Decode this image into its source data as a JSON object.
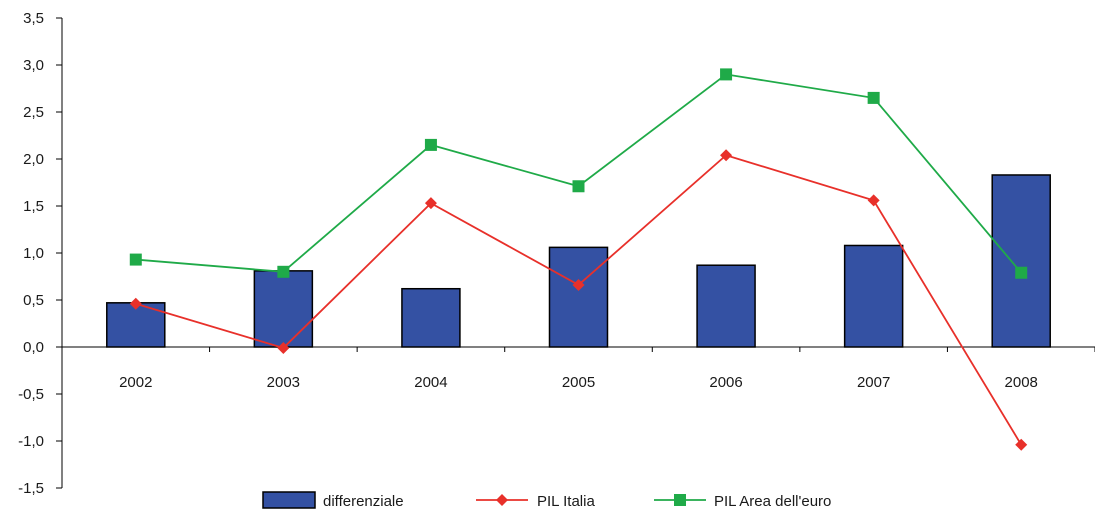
{
  "chart_data": {
    "type": "bar",
    "categories": [
      "2002",
      "2003",
      "2004",
      "2005",
      "2006",
      "2007",
      "2008"
    ],
    "ylim": [
      -1.5,
      3.5
    ],
    "yticks": [
      -1.5,
      -1.0,
      -0.5,
      0.0,
      0.5,
      1.0,
      1.5,
      2.0,
      2.5,
      3.0,
      3.5
    ],
    "ytick_labels": [
      "-1,5",
      "-1,0",
      "-0,5",
      "0,0",
      "0,5",
      "1,0",
      "1,5",
      "2,0",
      "2,5",
      "3,0",
      "3,5"
    ],
    "grid": false,
    "legend_position": "bottom",
    "series": [
      {
        "name": "differenziale",
        "type": "bar",
        "color": "#3451a3",
        "values": [
          0.47,
          0.81,
          0.62,
          1.06,
          0.87,
          1.08,
          1.83
        ]
      },
      {
        "name": "PIL Italia",
        "type": "line",
        "marker": "diamond",
        "color": "#e8302a",
        "values": [
          0.46,
          -0.01,
          1.53,
          0.66,
          2.04,
          1.56,
          -1.04
        ]
      },
      {
        "name": "PIL Area dell'euro",
        "type": "line",
        "marker": "square",
        "color": "#1faa48",
        "values": [
          0.93,
          0.8,
          2.15,
          1.71,
          2.9,
          2.65,
          0.79
        ]
      }
    ]
  }
}
